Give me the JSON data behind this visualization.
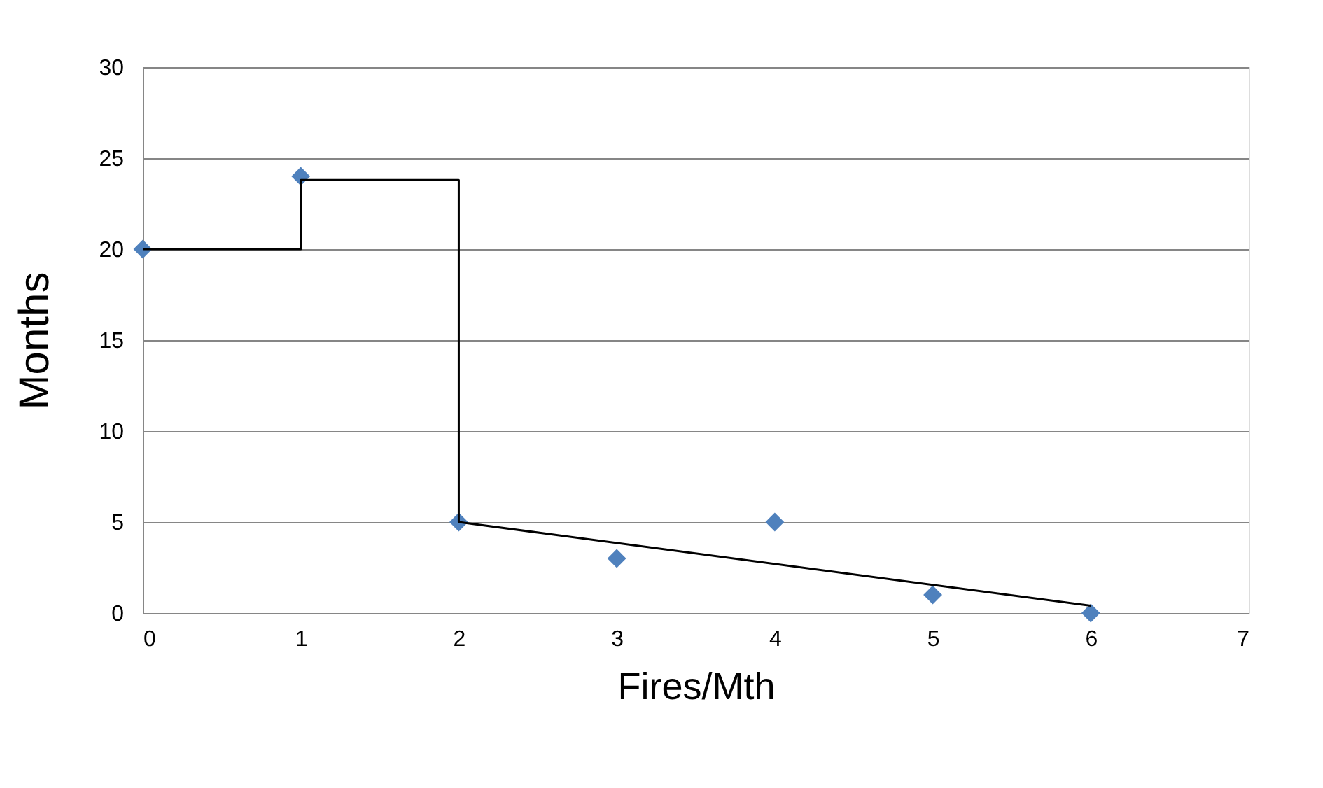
{
  "chart_data": {
    "type": "scatter",
    "xlabel": "Fires/Mth",
    "ylabel": "Months",
    "xlim": [
      0,
      7
    ],
    "xticks": [
      0,
      1,
      2,
      3,
      4,
      5,
      6,
      7
    ],
    "ylim": [
      0,
      30
    ],
    "yticks": [
      0,
      5,
      10,
      15,
      20,
      25,
      30
    ],
    "grid": "y",
    "series": [
      {
        "color": "#4f81bd",
        "marker": "diamond",
        "x": [
          0,
          1,
          2,
          3,
          4,
          5,
          6
        ],
        "values": [
          20,
          24,
          5,
          3,
          5,
          1,
          0
        ]
      },
      {
        "type": "line",
        "color": "#000000",
        "marker": "none",
        "line_style": "solid",
        "x": [
          0,
          1,
          1,
          2,
          2,
          6
        ],
        "values": [
          20,
          20,
          23.8,
          23.8,
          5,
          0.4
        ]
      }
    ]
  }
}
